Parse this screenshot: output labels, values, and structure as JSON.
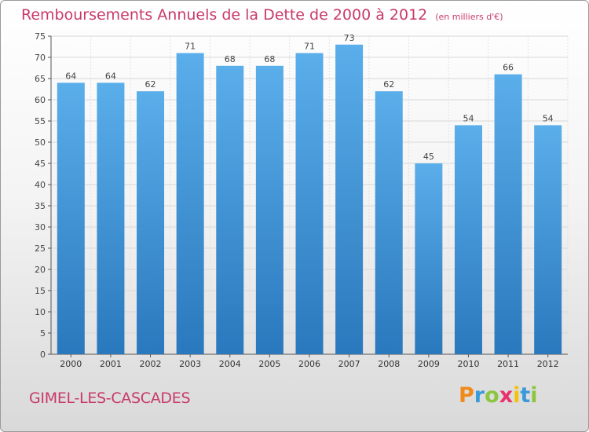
{
  "title": "Remboursements Annuels de la Dette de 2000 à 2012",
  "subtitle": "(en milliers d'€)",
  "commune": "GIMEL-LES-CASCADES",
  "logo": {
    "text": "Proxiti",
    "letters": [
      {
        "ch": "P",
        "color": "#f08a1c"
      },
      {
        "ch": "r",
        "color": "#3a9ad9"
      },
      {
        "ch": "o",
        "color": "#8cc63f"
      },
      {
        "ch": "x",
        "color": "#e8336d"
      },
      {
        "ch": "i",
        "color": "#f4c20d"
      },
      {
        "ch": "t",
        "color": "#3a9ad9"
      },
      {
        "ch": "i",
        "color": "#8cc63f"
      }
    ]
  },
  "colors": {
    "title": "#c8396b",
    "bar_top": "#5aaeea",
    "bar_bottom": "#2a78bd",
    "grid": "#d8d8d8"
  },
  "chart_data": {
    "type": "bar",
    "categories": [
      "2000",
      "2001",
      "2002",
      "2003",
      "2004",
      "2005",
      "2006",
      "2007",
      "2008",
      "2009",
      "2010",
      "2011",
      "2012"
    ],
    "values": [
      64,
      64,
      62,
      71,
      68,
      68,
      71,
      73,
      62,
      45,
      54,
      66,
      54
    ],
    "ylim": [
      0,
      75
    ],
    "yticks": [
      0,
      5,
      10,
      15,
      20,
      25,
      30,
      35,
      40,
      45,
      50,
      55,
      60,
      65,
      70,
      75
    ],
    "grid": true
  }
}
